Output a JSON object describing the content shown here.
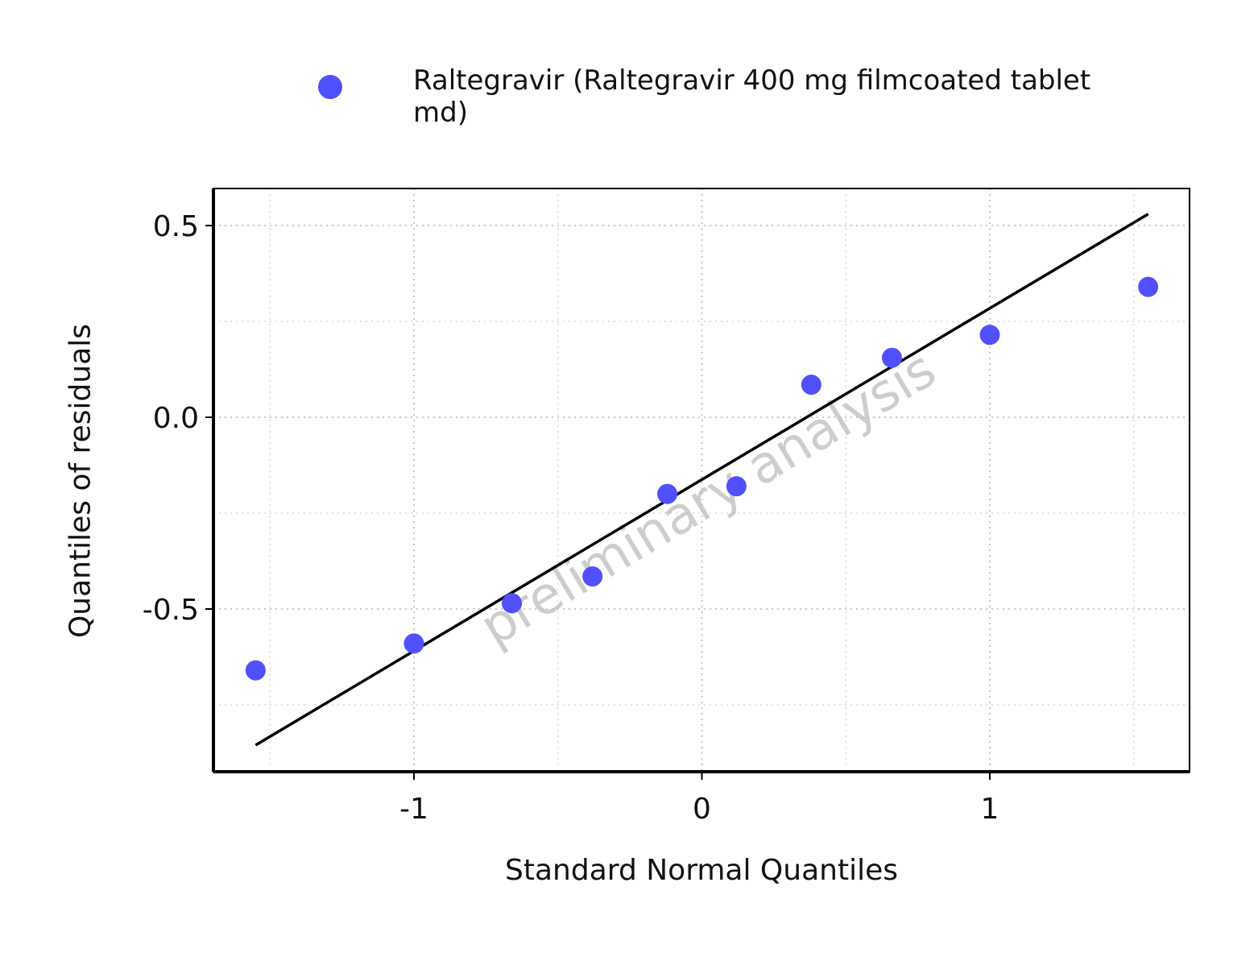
{
  "chart_data": {
    "type": "scatter",
    "title": "",
    "xlabel": "Standard Normal Quantiles",
    "ylabel": "Quantiles of residuals",
    "xlim": [
      -1.7,
      1.7
    ],
    "ylim": [
      -0.92,
      0.6
    ],
    "x_ticks": [
      -1,
      0,
      1
    ],
    "x_tick_labels": [
      "-1",
      "0",
      "1"
    ],
    "y_ticks": [
      -0.5,
      0.0,
      0.5
    ],
    "y_tick_labels": [
      "-0.5",
      "0.0",
      "0.5"
    ],
    "grid": true,
    "legend_position": "top",
    "series": [
      {
        "name": "Raltegravir (Raltegravir 400 mg filmcoated tablet md)",
        "color": "#5050ff",
        "x": [
          -1.55,
          -1.0,
          -0.66,
          -0.38,
          -0.12,
          0.12,
          0.38,
          0.66,
          1.0,
          1.55
        ],
        "y": [
          -0.66,
          -0.59,
          -0.485,
          -0.415,
          -0.2,
          -0.18,
          0.085,
          0.155,
          0.215,
          0.34
        ]
      }
    ],
    "reference_line": {
      "x": [
        -1.55,
        1.55
      ],
      "y": [
        -0.855,
        0.53
      ],
      "color": "#000000"
    },
    "watermark": "preliminary analysis"
  }
}
